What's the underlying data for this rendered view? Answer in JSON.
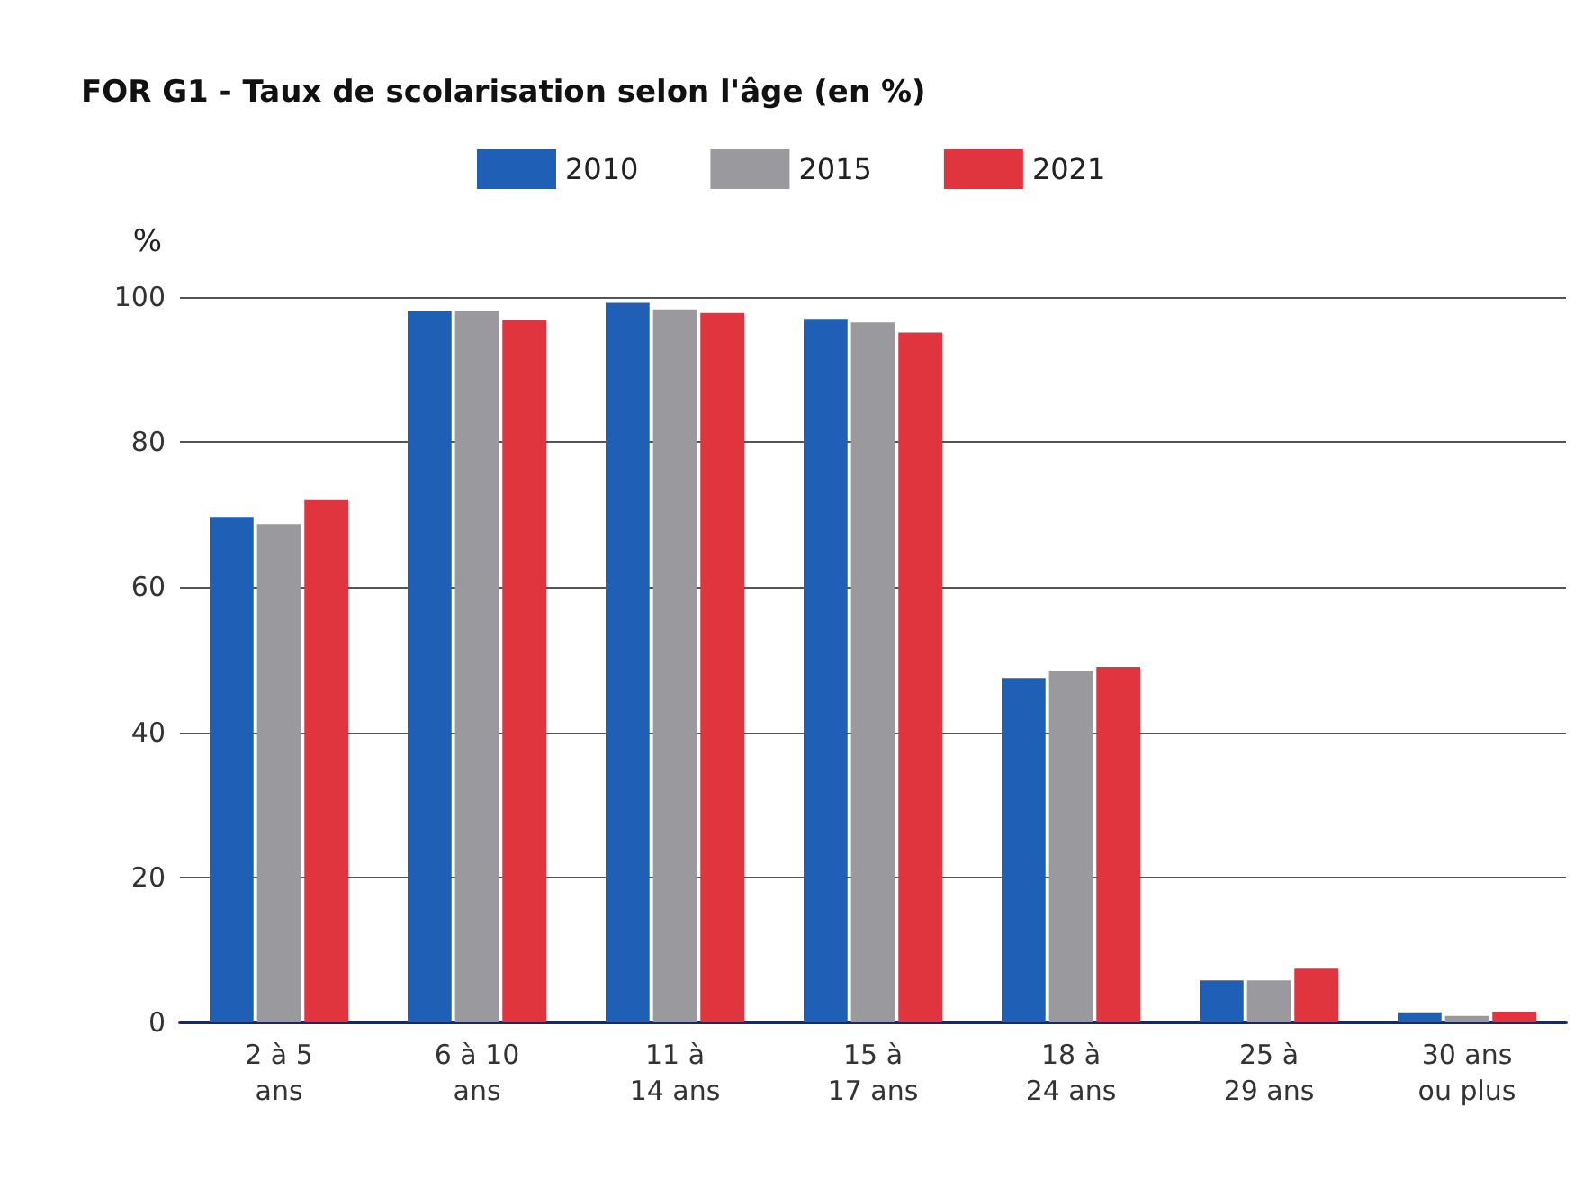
{
  "chart_data": {
    "type": "bar",
    "title": "FOR G1 - Taux de scolarisation selon l'âge (en %)",
    "ylabel": "%",
    "categories": [
      "2 à 5\nans",
      "6 à 10\nans",
      "11 à\n14 ans",
      "15 à\n17 ans",
      "18 à\n24 ans",
      "25 à\n29 ans",
      "30 ans\nou plus"
    ],
    "series": [
      {
        "name": "2010",
        "color": "#1f5fb5",
        "values": [
          69.7,
          98.1,
          99.2,
          97,
          47.5,
          5.8,
          1.4
        ]
      },
      {
        "name": "2015",
        "color": "#9a9a9e",
        "values": [
          68.7,
          98.1,
          98.3,
          96.5,
          48.5,
          5.8,
          0.9
        ]
      },
      {
        "name": "2021",
        "color": "#e0343f",
        "values": [
          72.1,
          96.8,
          97.8,
          95.1,
          49,
          7.4,
          1.5
        ]
      }
    ],
    "ylim": [
      0,
      100
    ],
    "yticks": [
      0,
      20,
      40,
      60,
      80,
      100
    ],
    "grid": "y",
    "legend": "top"
  }
}
